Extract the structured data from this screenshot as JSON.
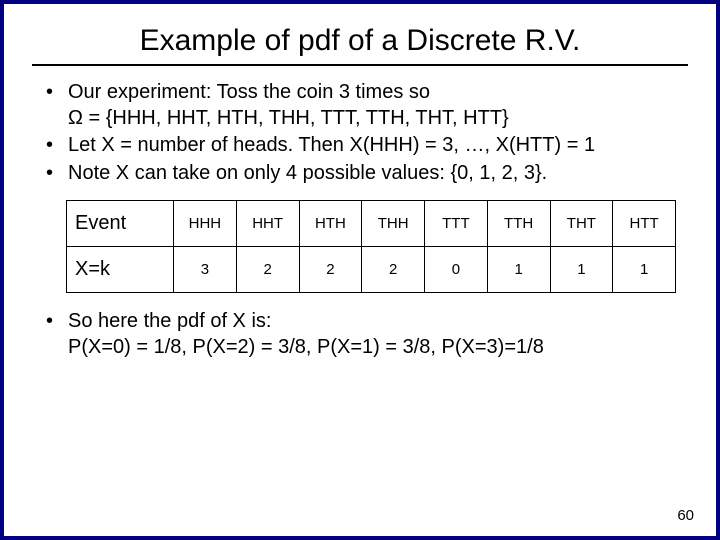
{
  "title": "Example of pdf of a Discrete R.V.",
  "bullets_top": [
    "Our experiment:   Toss the coin 3 times so\nΩ = {HHH, HHT, HTH, THH, TTT, TTH, THT, HTT}",
    "Let X = number of heads.  Then X(HHH) = 3, …, X(HTT) = 1",
    "Note X can take on only 4 possible values: {0, 1, 2, 3}."
  ],
  "table": {
    "row_labels": [
      "Event",
      "X=k"
    ],
    "columns": [
      "HHH",
      "HHT",
      "HTH",
      "THH",
      "TTT",
      "TTH",
      "THT",
      "HTT"
    ],
    "values": [
      "3",
      "2",
      "2",
      "2",
      "0",
      "1",
      "1",
      "1"
    ]
  },
  "bullets_bottom": [
    "So here the pdf of X is:\nP(X=0) = 1/8, P(X=2) = 3/8, P(X=1) = 3/8, P(X=3)=1/8"
  ],
  "page_number": "60"
}
